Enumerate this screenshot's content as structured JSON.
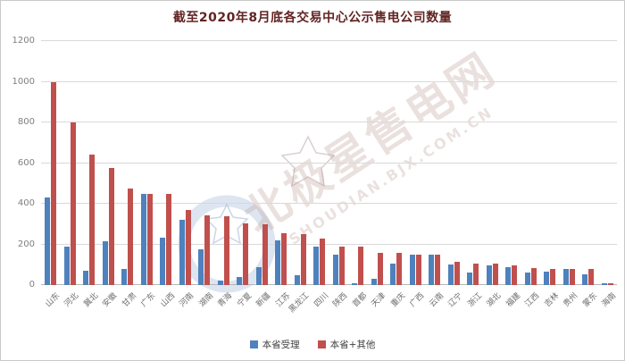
{
  "title": "截至2020年8月底各交易中心公示售电公司数量",
  "watermark": {
    "cn": "北极星售电网",
    "en": "SHOUDIAN.BJX.COM.CN"
  },
  "colors": {
    "series1": "#4F81BD",
    "series2": "#C0504D",
    "title": "#622423",
    "gridline": "#D9D9D9",
    "axis_text": "#7F7F7F"
  },
  "chart_data": {
    "type": "bar",
    "title": "截至2020年8月底各交易中心公示售电公司数量",
    "categories": [
      "山东",
      "河北",
      "冀北",
      "安徽",
      "甘肃",
      "广东",
      "山西",
      "河南",
      "湖南",
      "青海",
      "宁夏",
      "新疆",
      "江苏",
      "黑龙江",
      "四川",
      "陕西",
      "首都",
      "天津",
      "重庆",
      "广西",
      "云南",
      "辽宁",
      "浙江",
      "湖北",
      "福建",
      "江西",
      "吉林",
      "贵州",
      "蒙东",
      "海南"
    ],
    "series": [
      {
        "name": "本省受理",
        "color": "#4F81BD",
        "values": [
          430,
          190,
          70,
          215,
          80,
          450,
          235,
          320,
          175,
          20,
          40,
          90,
          220,
          50,
          190,
          150,
          10,
          30,
          105,
          150,
          150,
          100,
          60,
          95,
          90,
          60,
          65,
          80,
          55,
          8
        ]
      },
      {
        "name": "本省+其他",
        "color": "#C0504D",
        "values": [
          1000,
          800,
          640,
          575,
          475,
          450,
          450,
          370,
          345,
          340,
          305,
          300,
          255,
          250,
          230,
          190,
          190,
          160,
          160,
          150,
          150,
          115,
          105,
          105,
          95,
          85,
          80,
          80,
          80,
          10
        ]
      }
    ],
    "xlabel": "",
    "ylabel": "",
    "ylim": [
      0,
      1200
    ],
    "ytick_step": 200,
    "grid": true,
    "legend_position": "bottom"
  }
}
